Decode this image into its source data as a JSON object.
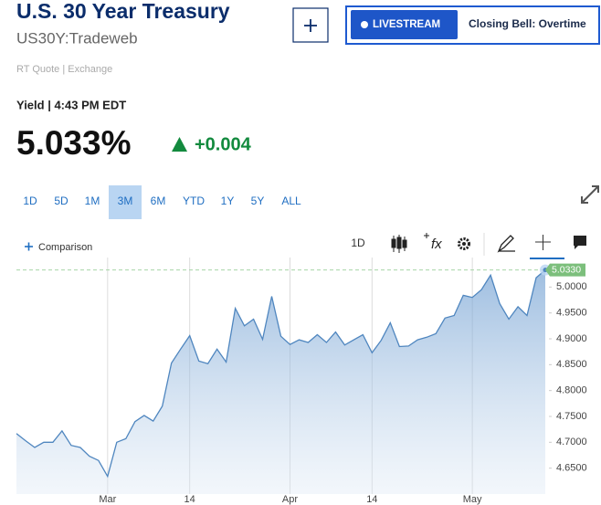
{
  "header": {
    "title": "U.S. 30 Year Treasury",
    "symbol": "US30Y:Tradeweb",
    "livestream": "LIVESTREAM",
    "livestream_show": "Closing Bell: Overtime"
  },
  "quote": {
    "source": "RT Quote | Exchange",
    "time_label": "Yield | 4:43 PM EDT",
    "last": "5.033%",
    "change": "+0.004"
  },
  "ranges": {
    "options": [
      "1D",
      "5D",
      "1M",
      "3M",
      "6M",
      "YTD",
      "1Y",
      "5Y",
      "ALL"
    ],
    "selected": 3
  },
  "toolbar": {
    "comparison": "Comparison",
    "interval": "1D",
    "study": "fx"
  },
  "chart_data": {
    "type": "area",
    "color": "#4f86bf",
    "categories": [
      null,
      null,
      null,
      null,
      null,
      null,
      null,
      null,
      null,
      null,
      "Mar",
      null,
      null,
      null,
      null,
      null,
      null,
      null,
      null,
      "14",
      null,
      null,
      null,
      null,
      null,
      null,
      null,
      null,
      null,
      null,
      "Apr",
      null,
      null,
      null,
      null,
      null,
      null,
      null,
      null,
      "14",
      null,
      null,
      null,
      null,
      null,
      null,
      null,
      null,
      null,
      null,
      "May",
      null,
      null,
      null,
      null,
      null,
      null,
      null,
      null
    ],
    "values": [
      4.717,
      4.703,
      4.69,
      4.7,
      4.7,
      4.722,
      4.694,
      4.69,
      4.673,
      4.665,
      4.634,
      4.7,
      4.707,
      4.74,
      4.752,
      4.741,
      4.77,
      4.853,
      4.88,
      4.906,
      4.857,
      4.852,
      4.88,
      4.855,
      4.959,
      4.925,
      4.938,
      4.899,
      4.982,
      4.905,
      4.889,
      4.898,
      4.893,
      4.908,
      4.893,
      4.913,
      4.888,
      4.898,
      4.908,
      4.873,
      4.897,
      4.931,
      4.885,
      4.886,
      4.898,
      4.903,
      4.91,
      4.94,
      4.945,
      4.984,
      4.98,
      4.995,
      5.023,
      4.968,
      4.938,
      4.962,
      4.945,
      5.018,
      5.033
    ],
    "ylim": [
      4.6,
      5.05
    ],
    "yticks": [
      {
        "value": 4.65,
        "label": "4.6500"
      },
      {
        "value": 4.7,
        "label": "4.7000"
      },
      {
        "value": 4.75,
        "label": "4.7500"
      },
      {
        "value": 4.8,
        "label": "4.8000"
      },
      {
        "value": 4.85,
        "label": "4.8500"
      },
      {
        "value": 4.9,
        "label": "4.9000"
      },
      {
        "value": 4.95,
        "label": "4.9500"
      },
      {
        "value": 5.0,
        "label": "5.0000"
      }
    ],
    "last_value": {
      "value": 5.033,
      "label": "5.0330"
    },
    "grid": true
  }
}
